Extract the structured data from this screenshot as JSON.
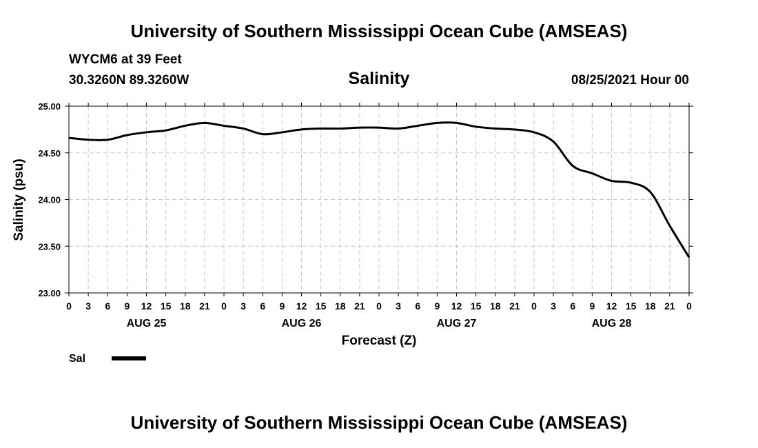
{
  "header": {
    "title": "University of Southern Mississippi Ocean Cube (AMSEAS)",
    "station": "WYCM6 at 39 Feet",
    "coordinates": "30.3260N  89.3260W",
    "datetime": "08/25/2021 Hour 00"
  },
  "footer": {
    "title": "University of Southern Mississippi Ocean Cube (AMSEAS)"
  },
  "chart_data": {
    "type": "line",
    "title": "Salinity",
    "xlabel": "Forecast (Z)",
    "ylabel": "Salinity (psu)",
    "ylim": [
      23.0,
      25.0
    ],
    "yticks": [
      "23.00",
      "23.50",
      "24.00",
      "24.50",
      "25.00"
    ],
    "ytick_values": [
      23.0,
      23.5,
      24.0,
      24.5,
      25.0
    ],
    "xlim": [
      0,
      96
    ],
    "xtick_labels": [
      "0",
      "3",
      "6",
      "9",
      "12",
      "15",
      "18",
      "21",
      "0",
      "3",
      "6",
      "9",
      "12",
      "15",
      "18",
      "21",
      "0",
      "3",
      "6",
      "9",
      "12",
      "15",
      "18",
      "21",
      "0",
      "3",
      "6",
      "9",
      "12",
      "15",
      "18",
      "21",
      "0"
    ],
    "day_labels": [
      "AUG 25",
      "AUG 26",
      "AUG 27",
      "AUG 28"
    ],
    "day_label_hours": [
      12,
      36,
      60,
      84
    ],
    "grid": true,
    "legend": {
      "position": "bottom-left",
      "entries": [
        "Sal"
      ]
    },
    "series": [
      {
        "name": "Sal",
        "x": [
          0,
          3,
          6,
          9,
          12,
          15,
          18,
          21,
          24,
          27,
          30,
          33,
          36,
          39,
          42,
          45,
          48,
          51,
          54,
          57,
          60,
          63,
          66,
          69,
          72,
          75,
          78,
          81,
          84,
          87,
          90,
          93,
          96
        ],
        "values": [
          24.66,
          24.64,
          24.64,
          24.69,
          24.72,
          24.74,
          24.79,
          24.82,
          24.79,
          24.76,
          24.7,
          24.72,
          24.75,
          24.76,
          24.76,
          24.77,
          24.77,
          24.76,
          24.79,
          24.82,
          24.82,
          24.78,
          24.76,
          24.75,
          24.72,
          24.62,
          24.36,
          24.28,
          24.2,
          24.18,
          24.08,
          23.72,
          23.38
        ]
      }
    ]
  }
}
